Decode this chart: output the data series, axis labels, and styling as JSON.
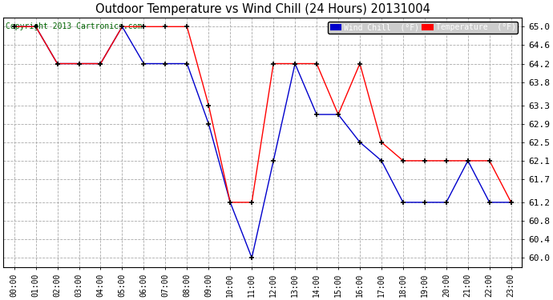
{
  "title": "Outdoor Temperature vs Wind Chill (24 Hours) 20131004",
  "copyright": "Copyright 2013 Cartronics.com",
  "background_color": "#ffffff",
  "plot_bg_color": "#ffffff",
  "grid_color": "#aaaaaa",
  "ylim": [
    59.8,
    65.2
  ],
  "yticks": [
    60.0,
    60.4,
    60.8,
    61.2,
    61.7,
    62.1,
    62.5,
    62.9,
    63.3,
    63.8,
    64.2,
    64.6,
    65.0
  ],
  "hours": [
    "00:00",
    "01:00",
    "02:00",
    "03:00",
    "04:00",
    "05:00",
    "06:00",
    "07:00",
    "08:00",
    "09:00",
    "10:00",
    "11:00",
    "12:00",
    "13:00",
    "14:00",
    "15:00",
    "16:00",
    "17:00",
    "18:00",
    "19:00",
    "20:00",
    "21:00",
    "22:00",
    "23:00"
  ],
  "temperature": [
    65.0,
    65.0,
    64.2,
    64.2,
    64.2,
    65.0,
    65.0,
    65.0,
    65.0,
    63.3,
    61.2,
    61.2,
    64.2,
    64.2,
    64.2,
    63.1,
    64.2,
    62.5,
    62.1,
    62.1,
    62.1,
    62.1,
    62.1,
    61.2
  ],
  "wind_chill": [
    65.0,
    65.0,
    64.2,
    64.2,
    64.2,
    65.0,
    64.2,
    64.2,
    64.2,
    62.9,
    61.2,
    60.0,
    62.1,
    64.2,
    63.1,
    63.1,
    62.5,
    62.1,
    61.2,
    61.2,
    61.2,
    62.1,
    61.2,
    61.2
  ],
  "temp_color": "#ff0000",
  "wind_color": "#0000cc",
  "marker_color": "#000000",
  "legend_wind_bg": "#0000cc",
  "legend_temp_bg": "#ff0000",
  "legend_text_color": "#ffffff"
}
